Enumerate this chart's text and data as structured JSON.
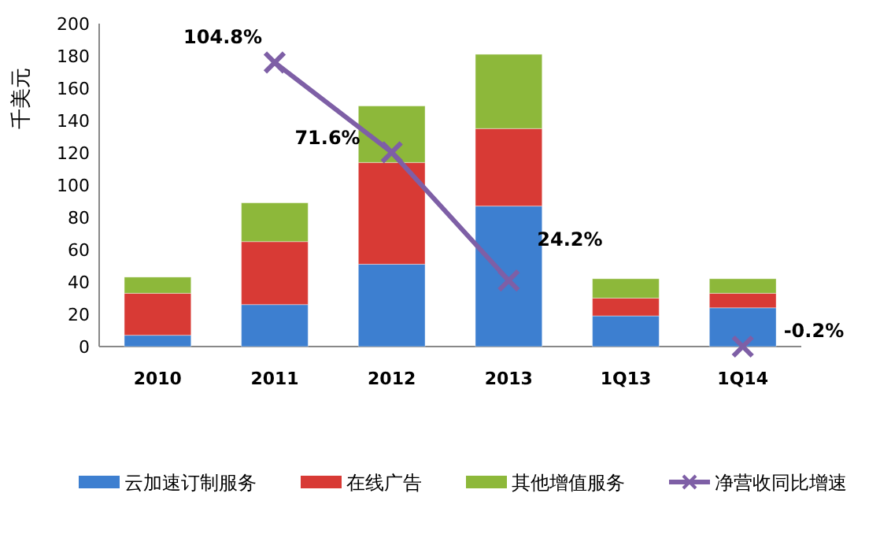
{
  "chart_data": {
    "type": "bar",
    "stacked": true,
    "ylabel": "千美元",
    "categories": [
      "2010",
      "2011",
      "2012",
      "2013",
      "1Q13",
      "1Q14"
    ],
    "ylim": [
      0,
      200
    ],
    "yticks": [
      0,
      20,
      40,
      60,
      80,
      100,
      120,
      140,
      160,
      180,
      200
    ],
    "legend": "bottom",
    "grid": false,
    "y2lim": [
      -0.2,
      119.2
    ],
    "series": [
      {
        "name": "云加速订制服务",
        "color": "#3d7fd0",
        "values": [
          7,
          26,
          51,
          87,
          19,
          24
        ]
      },
      {
        "name": "在线广告",
        "color": "#d83a35",
        "values": [
          26,
          39,
          63,
          48,
          11,
          9
        ]
      },
      {
        "name": "其他增值服务",
        "color": "#8db83a",
        "values": [
          10,
          24,
          35,
          46,
          12,
          9
        ]
      },
      {
        "name": "净营收同比增速",
        "type": "line",
        "axis": "y2",
        "marker": "cross",
        "color": "#7e5fa6",
        "values": [
          null,
          104.8,
          71.6,
          24.2,
          null,
          -0.2
        ],
        "value_labels": [
          null,
          "104.8%",
          "71.6%",
          "24.2%",
          null,
          "-0.2%"
        ]
      }
    ]
  }
}
